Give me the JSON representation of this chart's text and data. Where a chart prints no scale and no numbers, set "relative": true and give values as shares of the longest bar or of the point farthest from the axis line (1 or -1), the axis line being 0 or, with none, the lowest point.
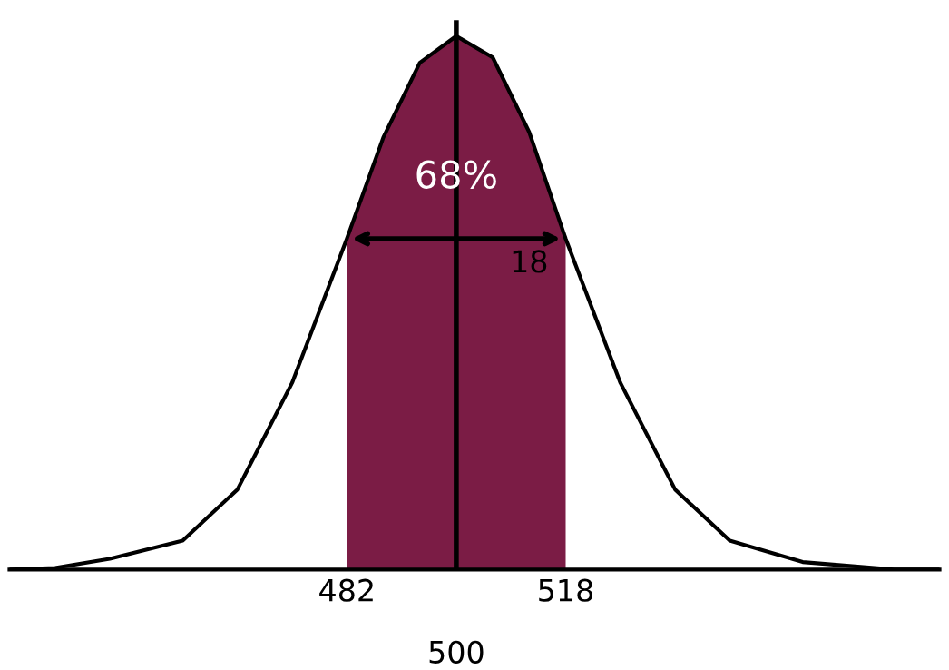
{
  "chart_data": {
    "type": "area",
    "relative": true,
    "xlim": [
      426.5,
      579.5
    ],
    "xticks": [
      482,
      518
    ],
    "tick_labels": "x",
    "grid": false,
    "series": [
      {
        "type": "area",
        "color": "#7b1c45",
        "x": [
          482,
          488,
          494,
          500,
          506,
          512,
          518
        ],
        "values": [
          0.62,
          0.81,
          0.95,
          1,
          0.96,
          0.82,
          0.62
        ]
      },
      {
        "type": "line",
        "color": "#000000",
        "x": [
          426.5,
          434,
          443,
          455,
          464,
          473,
          482,
          488,
          494,
          500,
          506,
          512,
          518,
          527,
          536,
          545,
          557,
          572,
          579.5
        ],
        "values": [
          0,
          0.003,
          0.02,
          0.054,
          0.15,
          0.35,
          0.62,
          0.81,
          0.95,
          1,
          0.96,
          0.82,
          0.62,
          0.35,
          0.15,
          0.054,
          0.014,
          0,
          0
        ]
      }
    ],
    "ref_lines": [
      {
        "axis": "x",
        "value": 500,
        "color": "#000000",
        "label": "500"
      }
    ],
    "annotations": [
      {
        "text": "68%",
        "x": 500,
        "y": 0.7
      },
      "18"
    ]
  }
}
